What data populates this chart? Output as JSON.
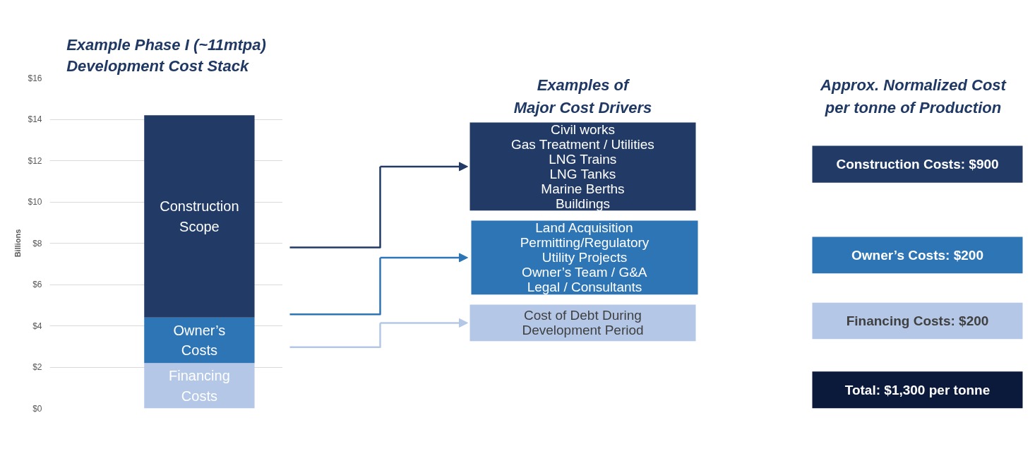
{
  "chart_data": {
    "type": "bar",
    "title": "Example Phase I (~11mtpa)\nDevelopment Cost Stack",
    "ylabel": "Billions",
    "categories": [
      null
    ],
    "stacked": true,
    "series": [
      {
        "name": "Financing\nCosts",
        "color": "#b4c7e7",
        "values": [
          2.2
        ]
      },
      {
        "name": "Owner’s\nCosts",
        "color": "#2e75b6",
        "values": [
          2.2
        ]
      },
      {
        "name": "Construction\nScope",
        "color": "#213a66",
        "values": [
          9.8
        ]
      }
    ],
    "ylim": [
      0,
      16
    ],
    "yticks": [
      {
        "value": 0,
        "label": "$0"
      },
      {
        "value": 2,
        "label": "$2"
      },
      {
        "value": 4,
        "label": "$4"
      },
      {
        "value": 6,
        "label": "$6"
      },
      {
        "value": 8,
        "label": "$8"
      },
      {
        "value": 10,
        "label": "$10"
      },
      {
        "value": 12,
        "label": "$12"
      },
      {
        "value": 14,
        "label": "$14"
      },
      {
        "value": 16,
        "label": "$16"
      }
    ],
    "grid": "y",
    "annotations": [
      "Examples of\nMajor Cost Drivers",
      "Approx. Normalized Cost\nper tonne of Production",
      "Civil works\nGas Treatment / Utilities\nLNG Trains\nLNG Tanks\nMarine Berths\nBuildings",
      "Land Acquisition\nPermitting/Regulatory\nUtility Projects\nOwner’s Team / G&A\nLegal / Consultants",
      "Cost of Debt During\nDevelopment Period",
      "Construction Costs: $900",
      "Owner’s Costs: $200",
      "Financing Costs: $200",
      "Total: $1,300 per tonne"
    ]
  }
}
